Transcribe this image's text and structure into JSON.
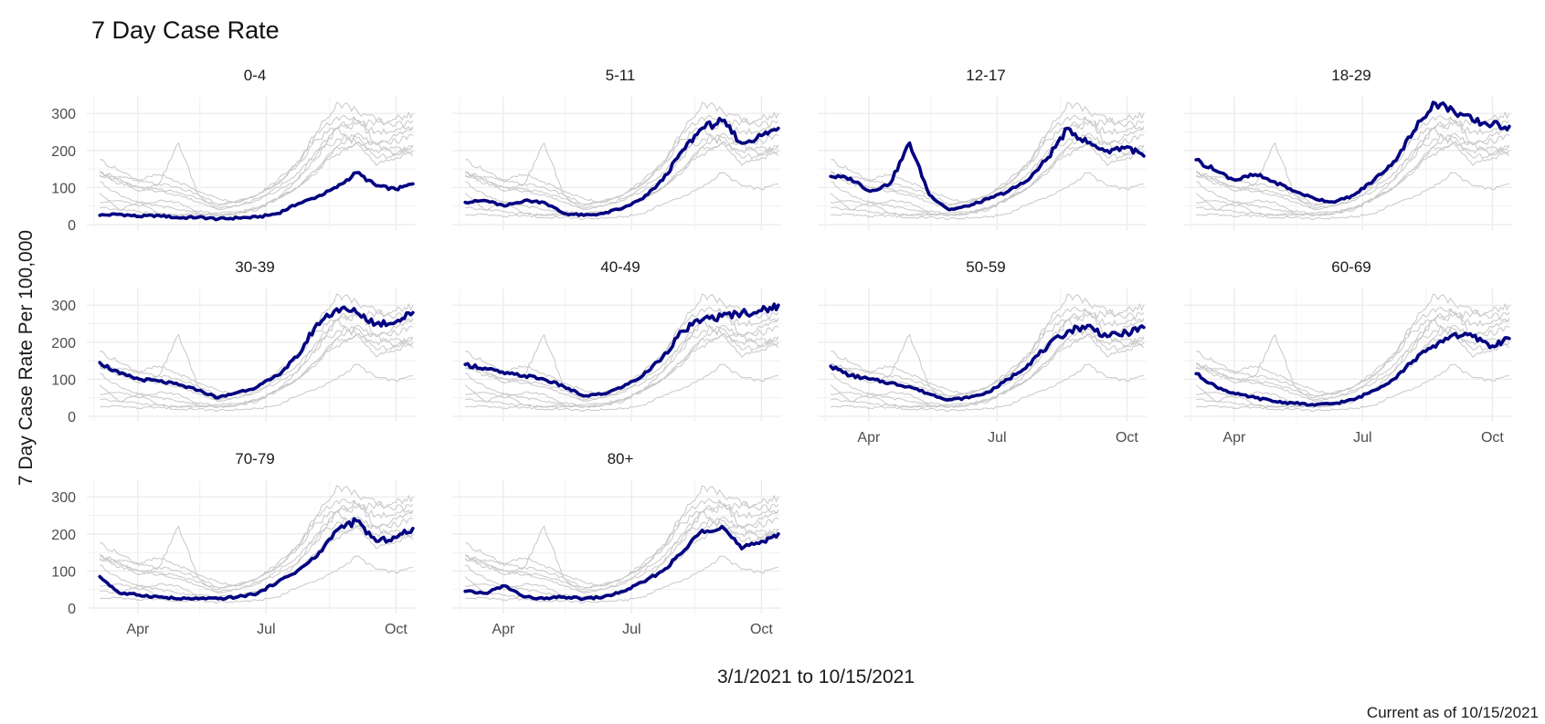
{
  "title": "7 Day Case Rate",
  "ylabel": "7 Day Case Rate Per 100,000",
  "xlabel": "3/1/2021 to 10/15/2021",
  "caption": "Current as of 10/15/2021",
  "chart_data": {
    "type": "line",
    "facet": "small-multiples, one panel per age group; highlighted group in navy, all other groups in light grey",
    "x_range": [
      "2021-03-01",
      "2021-10-15"
    ],
    "ylim": [
      0,
      340
    ],
    "y_ticks": [
      0,
      100,
      200,
      300
    ],
    "x_ticks": [
      {
        "label": "Apr",
        "date": "2021-04-01"
      },
      {
        "label": "Jul",
        "date": "2021-07-01"
      },
      {
        "label": "Oct",
        "date": "2021-10-01"
      }
    ],
    "grid": true,
    "colors": {
      "highlight": "#000080",
      "background_series": "#c8c8c8",
      "grid": "#ebebeb"
    },
    "x": [
      "2021-03-05",
      "2021-03-19",
      "2021-04-02",
      "2021-04-16",
      "2021-04-30",
      "2021-05-14",
      "2021-05-28",
      "2021-06-11",
      "2021-06-25",
      "2021-07-09",
      "2021-07-23",
      "2021-08-06",
      "2021-08-20",
      "2021-09-03",
      "2021-09-17",
      "2021-10-01",
      "2021-10-13"
    ],
    "series": [
      {
        "name": "0-4",
        "values": [
          25,
          28,
          22,
          25,
          18,
          20,
          15,
          18,
          20,
          30,
          55,
          75,
          100,
          140,
          105,
          95,
          110
        ]
      },
      {
        "name": "5-11",
        "values": [
          60,
          65,
          50,
          65,
          60,
          30,
          25,
          30,
          45,
          70,
          120,
          200,
          260,
          280,
          220,
          240,
          260
        ]
      },
      {
        "name": "12-17",
        "values": [
          130,
          125,
          90,
          110,
          220,
          80,
          40,
          50,
          70,
          90,
          120,
          180,
          260,
          220,
          200,
          210,
          185
        ]
      },
      {
        "name": "18-29",
        "values": [
          175,
          145,
          120,
          135,
          115,
          90,
          70,
          60,
          80,
          120,
          170,
          250,
          330,
          310,
          280,
          270,
          265
        ]
      },
      {
        "name": "30-39",
        "values": [
          145,
          115,
          100,
          95,
          85,
          70,
          50,
          65,
          80,
          110,
          160,
          250,
          290,
          280,
          250,
          255,
          280
        ]
      },
      {
        "name": "40-49",
        "values": [
          140,
          130,
          115,
          110,
          100,
          80,
          55,
          60,
          80,
          110,
          160,
          230,
          260,
          270,
          280,
          285,
          300
        ]
      },
      {
        "name": "50-59",
        "values": [
          135,
          110,
          100,
          90,
          80,
          60,
          45,
          50,
          65,
          100,
          140,
          190,
          230,
          245,
          215,
          225,
          240
        ]
      },
      {
        "name": "60-69",
        "values": [
          115,
          80,
          60,
          50,
          40,
          35,
          30,
          35,
          45,
          70,
          100,
          150,
          190,
          220,
          215,
          190,
          210
        ]
      },
      {
        "name": "70-79",
        "values": [
          85,
          40,
          35,
          30,
          25,
          25,
          25,
          30,
          40,
          70,
          100,
          140,
          210,
          235,
          180,
          190,
          215
        ]
      },
      {
        "name": "80+",
        "values": [
          45,
          40,
          60,
          30,
          25,
          30,
          25,
          30,
          45,
          70,
          100,
          150,
          210,
          220,
          160,
          180,
          200
        ]
      }
    ]
  }
}
